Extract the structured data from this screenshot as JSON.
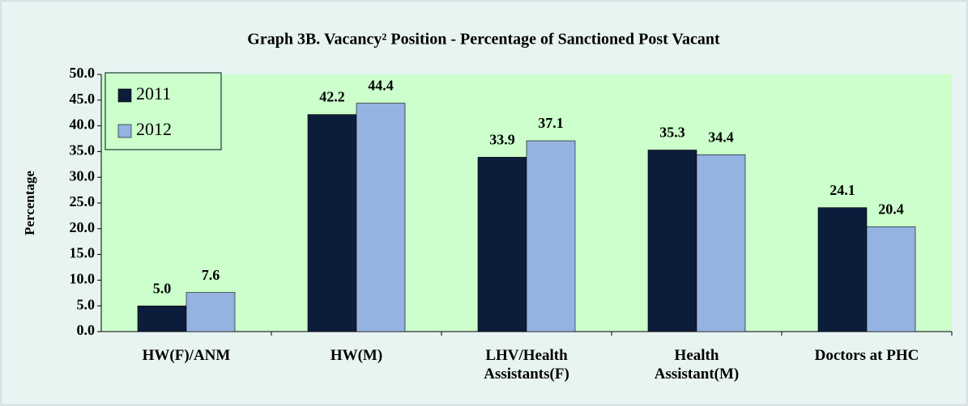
{
  "chart_data": {
    "type": "bar",
    "title": "Graph 3B. Vacancy² Position - Percentage of Sanctioned Post Vacant",
    "y_label": "Percentage",
    "categories": [
      "HW(F)/ANM",
      "HW(M)",
      "LHV/Health\nAssistants(F)",
      "Health\nAssistant(M)",
      "Doctors at PHC"
    ],
    "series": [
      {
        "name": "2011",
        "color": "#0c1d3b",
        "values": [
          5.0,
          42.2,
          33.9,
          35.3,
          24.1
        ],
        "value_labels": [
          "5.0",
          "42.2",
          "33.9",
          "35.3",
          "24.1"
        ]
      },
      {
        "name": "2012",
        "color": "#95b3e0",
        "values": [
          7.6,
          44.4,
          37.1,
          34.4,
          20.4
        ],
        "value_labels": [
          "7.6",
          "44.4",
          "37.1",
          "34.4",
          "20.4"
        ]
      }
    ],
    "ylim": [
      0,
      50
    ],
    "yticks": [
      {
        "value": 0,
        "label": "0.0"
      },
      {
        "value": 5,
        "label": "5.0"
      },
      {
        "value": 10,
        "label": "10.0"
      },
      {
        "value": 15,
        "label": "15.0"
      },
      {
        "value": 20,
        "label": "20.0"
      },
      {
        "value": 25,
        "label": "25.0"
      },
      {
        "value": 30,
        "label": "30.0"
      },
      {
        "value": 35,
        "label": "35.0"
      },
      {
        "value": 40,
        "label": "40.0"
      },
      {
        "value": 45,
        "label": "45.0"
      },
      {
        "value": 50,
        "label": "50.0"
      }
    ],
    "grid": false,
    "legend": "top-left"
  }
}
